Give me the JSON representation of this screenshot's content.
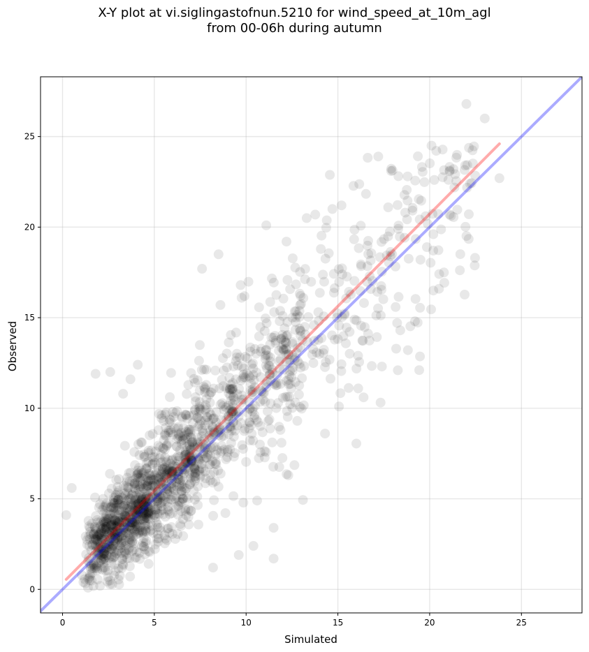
{
  "chart_data": {
    "type": "scatter",
    "title_line1": "X-Y plot at vi.siglingastofnun.5210 for wind_speed_at_10m_agl",
    "title_line2": "from 00-06h during autumn",
    "xlabel": "Simulated",
    "ylabel": "Observed",
    "xlim": [
      -1.2,
      28.3
    ],
    "ylim": [
      -1.3,
      28.3
    ],
    "xticks": [
      0,
      5,
      10,
      15,
      20,
      25
    ],
    "yticks": [
      0,
      5,
      10,
      15,
      20,
      25
    ],
    "grid": true,
    "point_color": "#000000",
    "point_alpha": 0.09,
    "identity_line": {
      "x": [
        -1.2,
        28.3
      ],
      "y": [
        -1.2,
        28.3
      ],
      "color": "#0000ff",
      "alpha": 0.33
    },
    "regression_line": {
      "x": [
        0.2,
        23.8
      ],
      "y": [
        0.55,
        24.6
      ],
      "color": "#ff0000",
      "alpha": 0.33
    },
    "outlier_points": [
      {
        "x": 22.0,
        "y": 26.8
      },
      {
        "x": 23.0,
        "y": 26.0
      },
      {
        "x": 23.8,
        "y": 22.7
      },
      {
        "x": 20.1,
        "y": 24.5
      },
      {
        "x": 17.2,
        "y": 23.9
      },
      {
        "x": 17.9,
        "y": 23.1
      },
      {
        "x": 21.3,
        "y": 23.2
      },
      {
        "x": 18.8,
        "y": 22.8
      },
      {
        "x": 22.2,
        "y": 22.4
      },
      {
        "x": 11.1,
        "y": 20.1
      },
      {
        "x": 13.3,
        "y": 20.5
      },
      {
        "x": 15.2,
        "y": 21.2
      },
      {
        "x": 8.5,
        "y": 18.5
      },
      {
        "x": 7.6,
        "y": 17.7
      },
      {
        "x": 9.7,
        "y": 16.8
      },
      {
        "x": 8.6,
        "y": 15.7
      },
      {
        "x": 1.8,
        "y": 11.9
      },
      {
        "x": 2.6,
        "y": 12.0
      },
      {
        "x": 3.3,
        "y": 10.8
      },
      {
        "x": 3.7,
        "y": 11.6
      },
      {
        "x": 4.1,
        "y": 12.4
      },
      {
        "x": 16.4,
        "y": 10.6
      },
      {
        "x": 17.4,
        "y": 12.3
      },
      {
        "x": 14.3,
        "y": 8.6
      },
      {
        "x": 12.3,
        "y": 6.3
      },
      {
        "x": 10.6,
        "y": 4.9
      },
      {
        "x": 11.5,
        "y": 3.4
      },
      {
        "x": 11.5,
        "y": 1.7
      },
      {
        "x": 10.4,
        "y": 2.4
      },
      {
        "x": 8.2,
        "y": 1.2
      },
      {
        "x": 9.6,
        "y": 1.9
      },
      {
        "x": 19.5,
        "y": 18.2
      },
      {
        "x": 20.2,
        "y": 16.5
      },
      {
        "x": 19.2,
        "y": 14.8
      },
      {
        "x": 18.4,
        "y": 14.3
      },
      {
        "x": 16.1,
        "y": 12.9
      },
      {
        "x": 14.0,
        "y": 13.0
      },
      {
        "x": 12.2,
        "y": 19.2
      },
      {
        "x": 0.2,
        "y": 4.1
      },
      {
        "x": 0.5,
        "y": 5.6
      }
    ]
  }
}
